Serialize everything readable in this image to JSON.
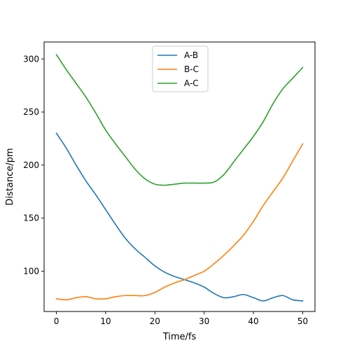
{
  "chart_data": {
    "type": "line",
    "xlabel": "Time/fs",
    "ylabel": "Distance/pm",
    "xlim": [
      -2.5,
      52.5
    ],
    "ylim": [
      62,
      316
    ],
    "x_ticks": [
      0,
      10,
      20,
      30,
      40,
      50
    ],
    "y_ticks": [
      100,
      150,
      200,
      250,
      300
    ],
    "grid": false,
    "legend_placement": "top-center",
    "series": [
      {
        "name": "A-B",
        "color": "#1f77b4",
        "x": [
          0,
          2,
          4,
          6,
          8,
          10,
          12,
          14,
          16,
          18,
          20,
          22,
          24,
          26,
          28,
          30,
          32,
          34,
          36,
          38,
          40,
          42,
          44,
          46,
          48,
          50
        ],
        "y": [
          230,
          216,
          200,
          185,
          172,
          158,
          144,
          131,
          121,
          113,
          105,
          99,
          95,
          92,
          89,
          85,
          79,
          75,
          76,
          78,
          75,
          72,
          75,
          77,
          73,
          72
        ]
      },
      {
        "name": "B-C",
        "color": "#ff7f0e",
        "x": [
          0,
          2,
          4,
          6,
          8,
          10,
          12,
          14,
          16,
          18,
          20,
          22,
          24,
          26,
          28,
          30,
          32,
          34,
          36,
          38,
          40,
          42,
          44,
          46,
          48,
          50
        ],
        "y": [
          74,
          73,
          75,
          76,
          74,
          74,
          76,
          77,
          77,
          77,
          80,
          85,
          89,
          92,
          96,
          100,
          107,
          115,
          124,
          134,
          147,
          162,
          175,
          188,
          204,
          220
        ]
      },
      {
        "name": "A-C",
        "color": "#2ca02c",
        "x": [
          0,
          2,
          4,
          6,
          8,
          10,
          12,
          14,
          16,
          18,
          20,
          22,
          24,
          26,
          28,
          30,
          32,
          34,
          36,
          38,
          40,
          42,
          44,
          46,
          48,
          50
        ],
        "y": [
          304,
          290,
          277,
          264,
          249,
          233,
          220,
          208,
          196,
          187,
          182,
          181,
          182,
          183,
          183,
          183,
          184,
          191,
          203,
          215,
          227,
          241,
          258,
          272,
          282,
          292
        ]
      }
    ]
  }
}
